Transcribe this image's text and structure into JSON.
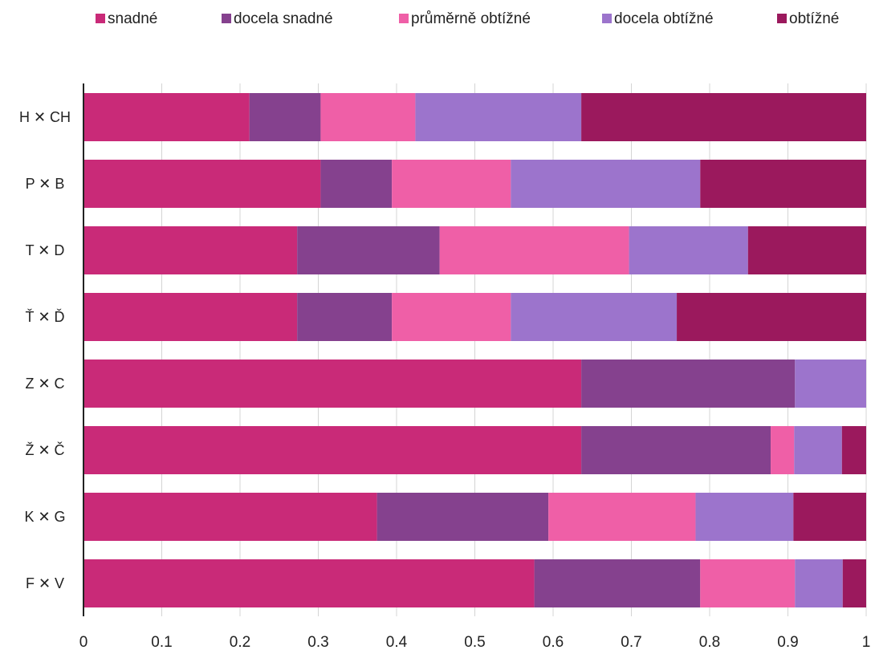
{
  "chart_data": {
    "type": "bar",
    "orientation": "horizontal",
    "stacked": true,
    "categories": [
      "H ✕ CH",
      "P ✕ B",
      "T ✕ D",
      "Ť ✕ Ď",
      "Z ✕ C",
      "Ž ✕ Č",
      "K ✕ G",
      "F ✕ V"
    ],
    "series": [
      {
        "name": "snadné",
        "color": "#c92a78",
        "values": [
          0.212,
          0.303,
          0.273,
          0.273,
          0.636,
          0.636,
          0.375,
          0.576
        ]
      },
      {
        "name": "docela snadné",
        "color": "#85418e",
        "values": [
          0.091,
          0.091,
          0.182,
          0.121,
          0.273,
          0.242,
          0.219,
          0.212
        ]
      },
      {
        "name": "průměrně obtížné",
        "color": "#ef5fa7",
        "values": [
          0.121,
          0.152,
          0.242,
          0.152,
          0.0,
          0.03,
          0.188,
          0.121
        ]
      },
      {
        "name": "docela obtížné",
        "color": "#9c74cc",
        "values": [
          0.212,
          0.242,
          0.152,
          0.212,
          0.091,
          0.061,
          0.125,
          0.061
        ]
      },
      {
        "name": "obtížné",
        "color": "#9b195d",
        "values": [
          0.364,
          0.212,
          0.151,
          0.242,
          0.0,
          0.031,
          0.093,
          0.03
        ]
      }
    ],
    "xlim": [
      0,
      1
    ],
    "xticks": [
      "0",
      "0.1",
      "0.2",
      "0.3",
      "0.4",
      "0.5",
      "0.6",
      "0.7",
      "0.8",
      "0.9",
      "1"
    ],
    "title": "",
    "xlabel": "",
    "ylabel": "",
    "grid": "vertical",
    "legend": "top"
  }
}
